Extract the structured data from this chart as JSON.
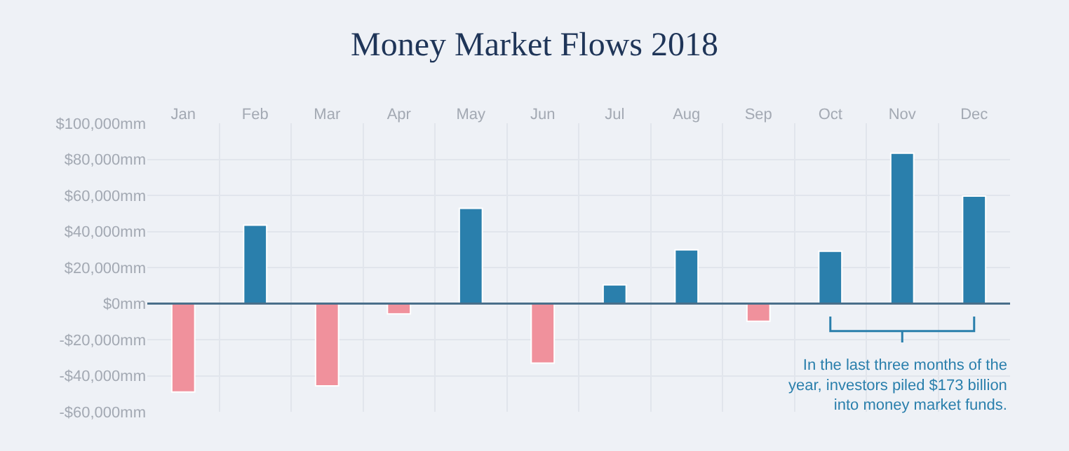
{
  "chart_data": {
    "type": "bar",
    "title": "Money Market Flows 2018",
    "categories": [
      "Jan",
      "Feb",
      "Mar",
      "Apr",
      "May",
      "Jun",
      "Jul",
      "Aug",
      "Sep",
      "Oct",
      "Nov",
      "Dec"
    ],
    "values": [
      -49000,
      43500,
      -45600,
      -5700,
      52800,
      -33000,
      10400,
      29800,
      -9800,
      29000,
      83400,
      59600
    ],
    "colors": [
      "#f0919c",
      "#2a7fac",
      "#f0919c",
      "#f0919c",
      "#2a7fac",
      "#f0919c",
      "#2a7fac",
      "#2a7fac",
      "#f0919c",
      "#2a7fac",
      "#2a7fac",
      "#2a7fac"
    ],
    "ylim": [
      -60000,
      100000
    ],
    "yticks": [
      {
        "value": -60000,
        "label": "-$60,000mm"
      },
      {
        "value": -40000,
        "label": "-$40,000mm"
      },
      {
        "value": -20000,
        "label": "-$20,000mm"
      },
      {
        "value": 0,
        "label": "$0mm"
      },
      {
        "value": 20000,
        "label": "$20,000mm"
      },
      {
        "value": 40000,
        "label": "$40,000mm"
      },
      {
        "value": 60000,
        "label": "$60,000mm"
      },
      {
        "value": 80000,
        "label": "$80,000mm"
      },
      {
        "value": 100000,
        "label": "$100,000mm"
      }
    ],
    "grid": true,
    "ref_lines": [
      {
        "axis": "y",
        "value": 0,
        "color": "#4a6f8a"
      }
    ],
    "legend": false,
    "annotations": [
      "In the last three months of the year, investors piled $173 billion into money market funds."
    ]
  }
}
